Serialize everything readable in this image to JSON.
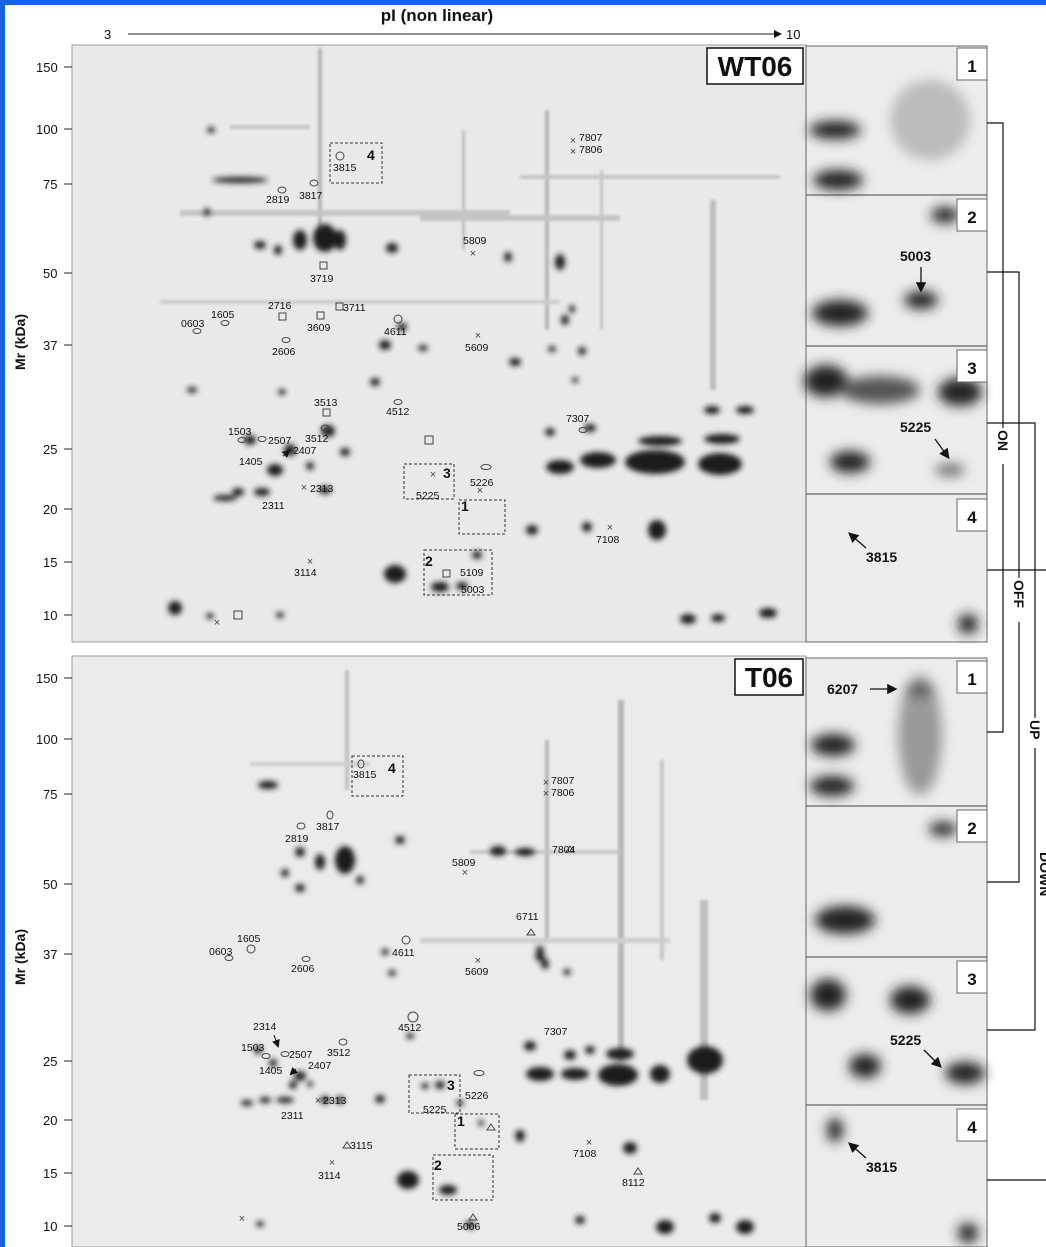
{
  "figure": {
    "axis_top": {
      "label": "pI (non linear)",
      "start": "3",
      "end": "10"
    },
    "y_axis_label": "Mr (kDa)",
    "mr_ticks": [
      "150",
      "100",
      "75",
      "50",
      "37",
      "25",
      "20",
      "15",
      "10"
    ],
    "group_labels": [
      "ON",
      "OFF",
      "UP",
      "DOWN"
    ],
    "colors": {
      "frame_blue": "#1565e0",
      "gel_bg": "#e9e9e9",
      "spot": "#1a1a1a"
    }
  },
  "gels": [
    {
      "name": "WT06",
      "boxes": [
        "1",
        "2",
        "3",
        "4"
      ],
      "spots": [
        "0603",
        "1605",
        "2716",
        "3609",
        "3711",
        "2606",
        "3719",
        "2819",
        "3817",
        "3815",
        "4611",
        "5809",
        "5609",
        "7807",
        "7806",
        "3513",
        "4512",
        "1503",
        "2507",
        "3512",
        "2407",
        "1405",
        "2313",
        "2311",
        "5225",
        "5226",
        "7307",
        "7108",
        "3114",
        "5109",
        "5003"
      ],
      "zooms": [
        {
          "n": "1",
          "note": ""
        },
        {
          "n": "2",
          "note": "5003"
        },
        {
          "n": "3",
          "note": "5225"
        },
        {
          "n": "4",
          "note": "3815"
        }
      ]
    },
    {
      "name": "T06",
      "boxes": [
        "1",
        "2",
        "3",
        "4"
      ],
      "spots": [
        "0603",
        "1605",
        "2606",
        "2819",
        "3817",
        "3815",
        "4611",
        "5809",
        "5609",
        "7807",
        "7806",
        "7804",
        "6711",
        "4512",
        "2314",
        "1503",
        "2507",
        "3512",
        "2407",
        "1405",
        "2313",
        "2311",
        "5225",
        "5226",
        "7307",
        "3115",
        "7108",
        "3114",
        "8112",
        "5006"
      ],
      "zooms": [
        {
          "n": "1",
          "note": "6207"
        },
        {
          "n": "2",
          "note": ""
        },
        {
          "n": "3",
          "note": "5225"
        },
        {
          "n": "4",
          "note": "3815"
        }
      ]
    }
  ]
}
